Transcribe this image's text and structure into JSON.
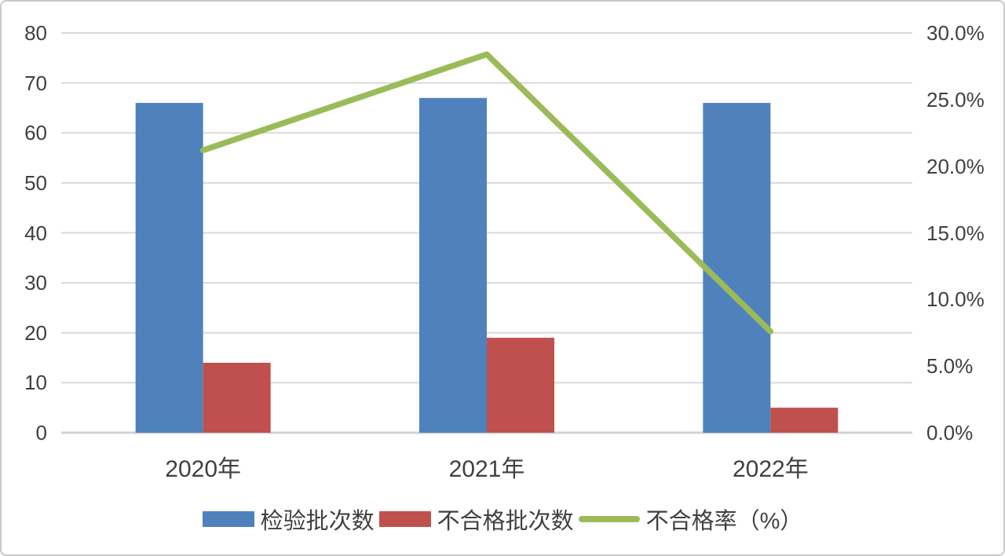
{
  "chart_data": {
    "type": "bar",
    "subtype": "grouped-bars-with-line-combo",
    "title": "",
    "categories": [
      "2020年",
      "2021年",
      "2022年"
    ],
    "series": [
      {
        "name": "检验批次数",
        "type": "bar",
        "axis": "left",
        "color": "#4F81BD",
        "values": [
          66,
          67,
          66
        ]
      },
      {
        "name": "不合格批次数",
        "type": "bar",
        "axis": "left",
        "color": "#C0504D",
        "values": [
          14,
          19,
          5
        ]
      },
      {
        "name": "不合格率（%）",
        "type": "line",
        "axis": "right",
        "color": "#9BBB59",
        "values": [
          21.2,
          28.4,
          7.6
        ]
      }
    ],
    "left_axis": {
      "min": 0,
      "max": 80,
      "step": 10,
      "tick_labels": [
        "0",
        "10",
        "20",
        "30",
        "40",
        "50",
        "60",
        "70",
        "80"
      ]
    },
    "right_axis": {
      "min": 0,
      "max": 30,
      "step": 5,
      "tick_labels": [
        "0.0%",
        "5.0%",
        "10.0%",
        "15.0%",
        "20.0%",
        "25.0%",
        "30.0%"
      ]
    },
    "grid": true,
    "legend_position": "bottom",
    "colors": {
      "grid_line": "#D9D9D9",
      "baseline": "#D2D2D2",
      "axis_text": "#404040",
      "background": "#FFFFFF",
      "border": "#C9C9C9"
    }
  }
}
